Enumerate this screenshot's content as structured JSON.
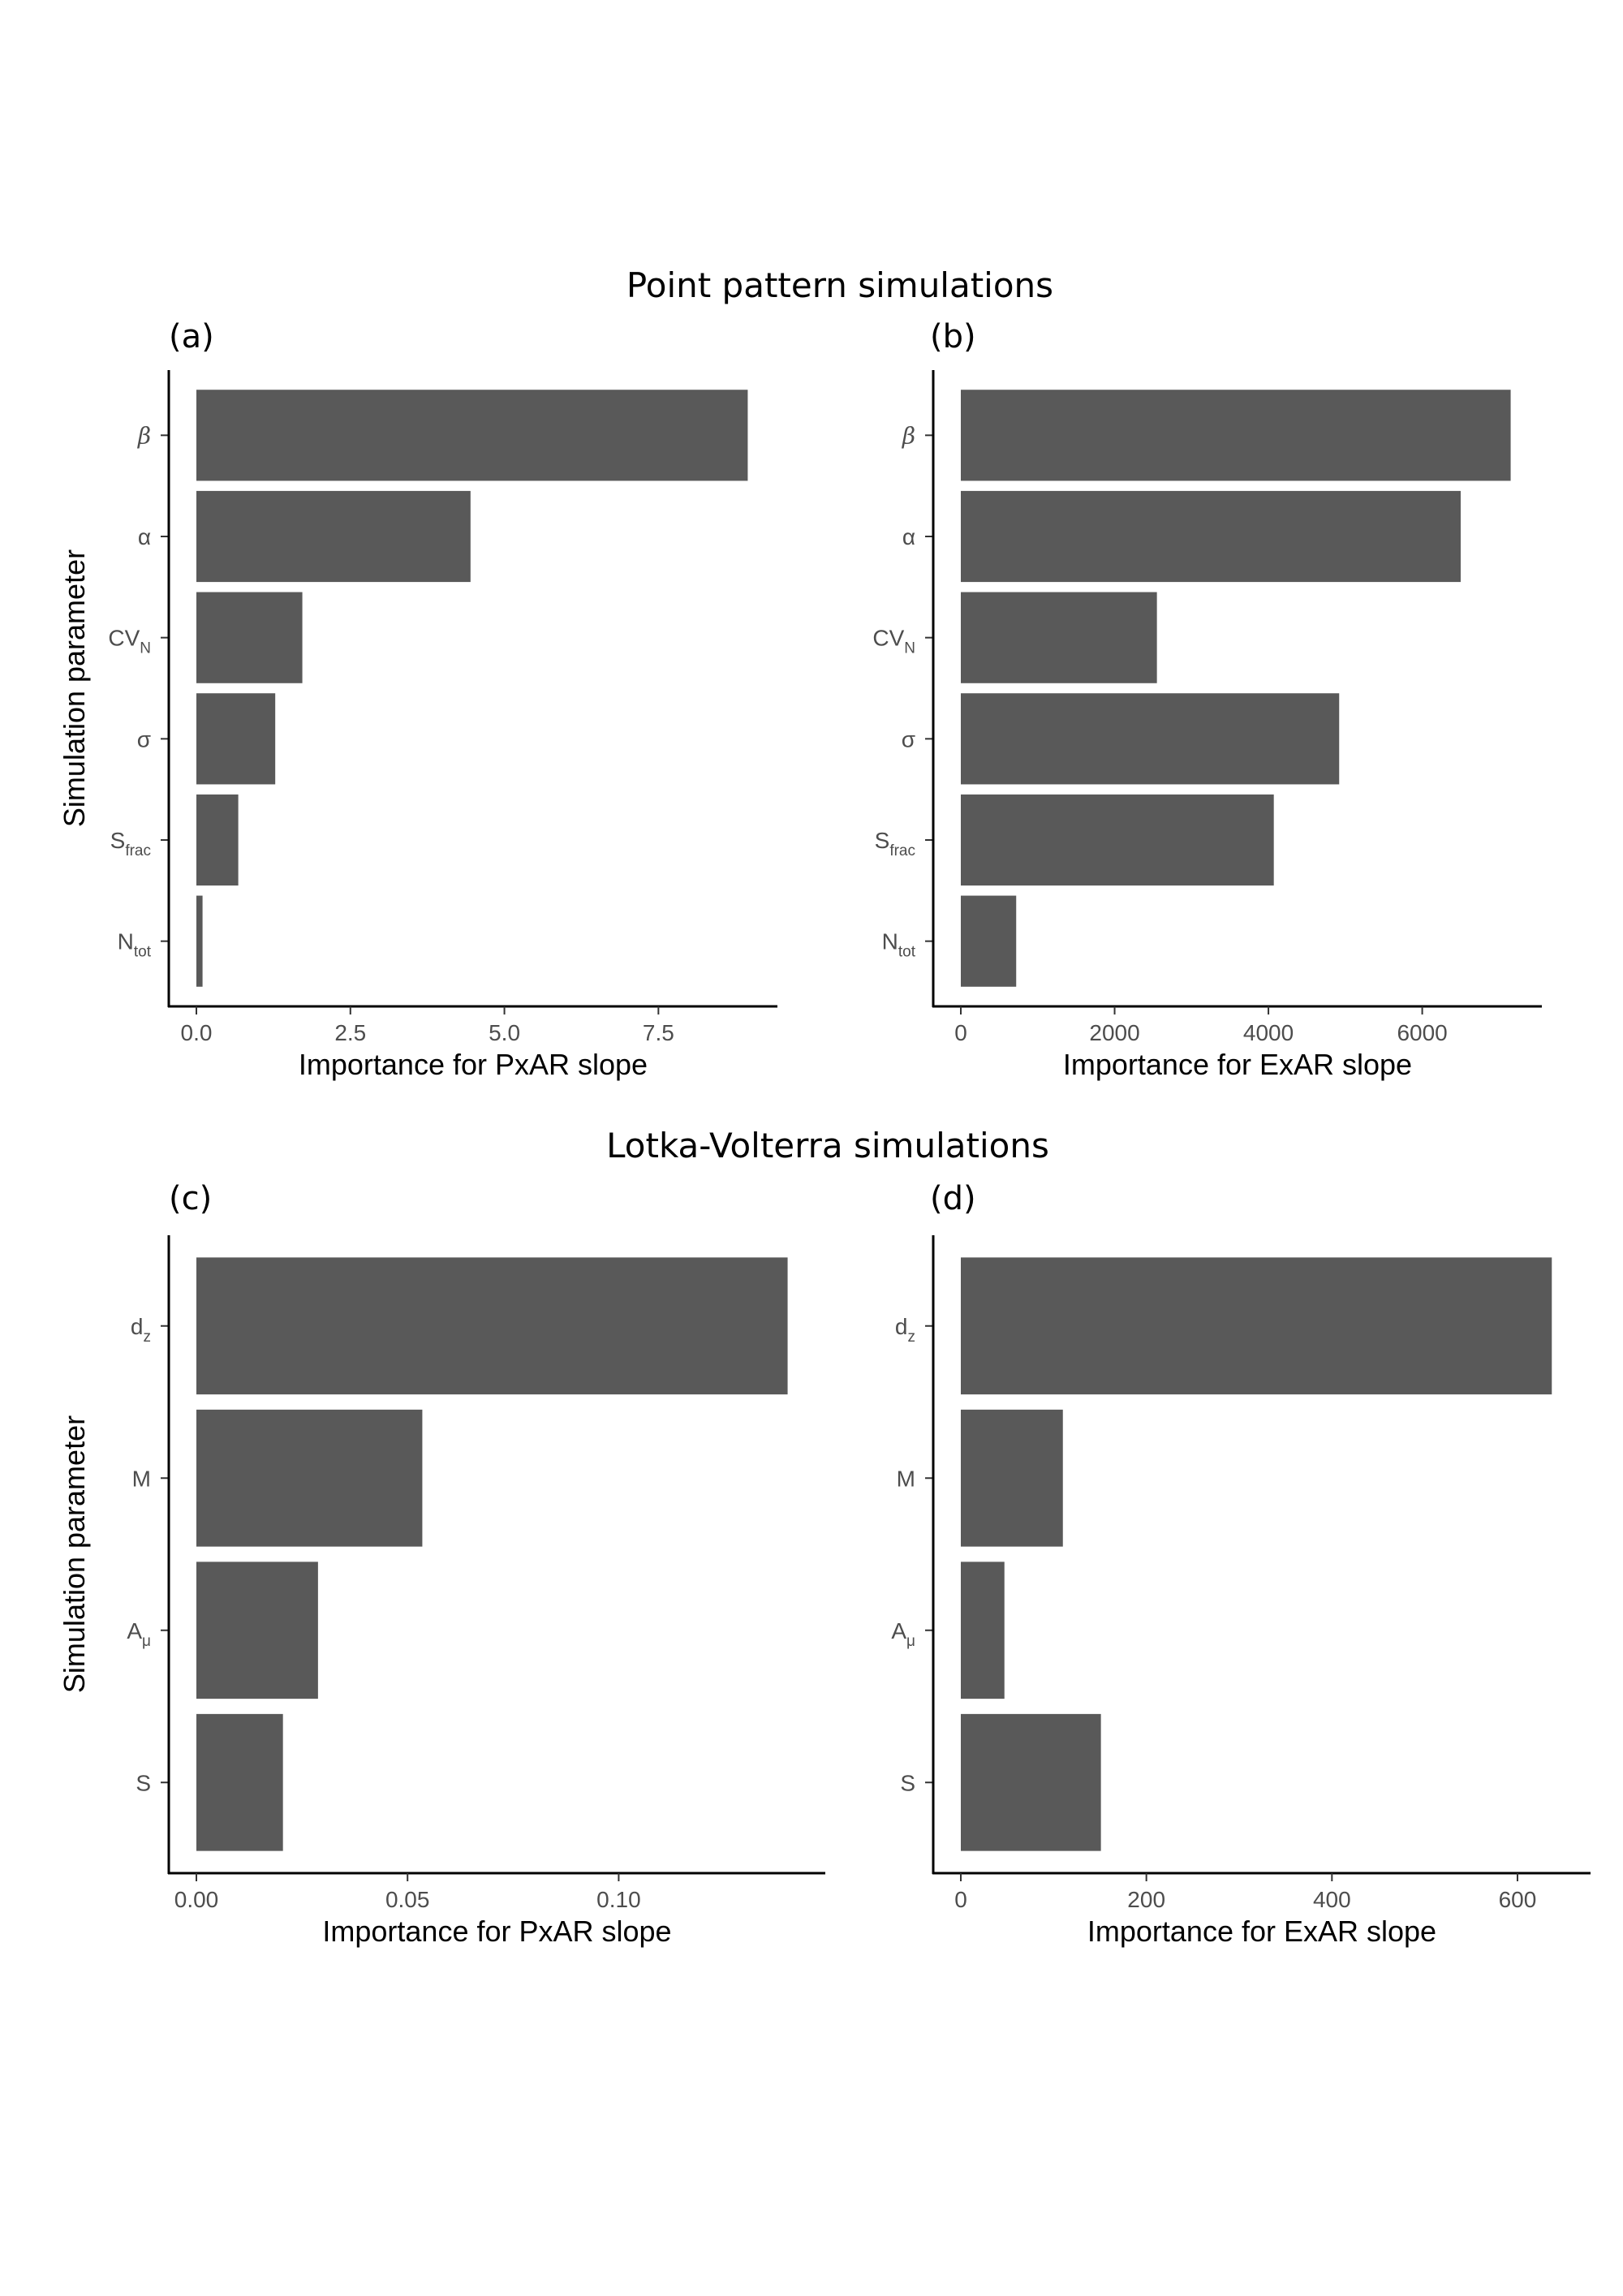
{
  "figure": {
    "section_titles": [
      "Point pattern simulations",
      "Lotka-Volterra simulations"
    ],
    "bar_color": "#595959"
  },
  "chart_data": [
    {
      "type": "bar",
      "orientation": "horizontal",
      "panel": "(a)",
      "section": "Point pattern simulations",
      "xlabel": "Importance for PxAR slope",
      "ylabel": "Simulation parameter",
      "xlim": [
        0,
        9.3
      ],
      "xticks": [
        0,
        2.5,
        5,
        7.5
      ],
      "xtick_labels": [
        "0.0",
        "2.5",
        "5.0",
        "7.5"
      ],
      "categories": [
        {
          "id": "beta",
          "base": "β",
          "sub": "",
          "italic": true
        },
        {
          "id": "alpha",
          "base": "α",
          "sub": ""
        },
        {
          "id": "cvn",
          "base": "CV",
          "sub": "N"
        },
        {
          "id": "sigma",
          "base": "σ",
          "sub": ""
        },
        {
          "id": "sfrac",
          "base": "S",
          "sub": "frac"
        },
        {
          "id": "ntot",
          "base": "N",
          "sub": "tot"
        }
      ],
      "values": [
        8.95,
        4.45,
        1.72,
        1.28,
        0.68,
        0.1
      ],
      "grid": false
    },
    {
      "type": "bar",
      "orientation": "horizontal",
      "panel": "(b)",
      "section": "Point pattern simulations",
      "xlabel": "Importance for ExAR slope",
      "ylabel": "",
      "xlim": [
        0,
        7450
      ],
      "xticks": [
        0,
        2000,
        4000,
        6000
      ],
      "xtick_labels": [
        "0",
        "2000",
        "4000",
        "6000"
      ],
      "categories": [
        {
          "id": "beta",
          "base": "β",
          "sub": "",
          "italic": true
        },
        {
          "id": "alpha",
          "base": "α",
          "sub": ""
        },
        {
          "id": "cvn",
          "base": "CV",
          "sub": "N"
        },
        {
          "id": "sigma",
          "base": "σ",
          "sub": ""
        },
        {
          "id": "sfrac",
          "base": "S",
          "sub": "frac"
        },
        {
          "id": "ntot",
          "base": "N",
          "sub": "tot"
        }
      ],
      "values": [
        7150,
        6500,
        2550,
        4920,
        4070,
        720
      ],
      "grid": false
    },
    {
      "type": "bar",
      "orientation": "horizontal",
      "panel": "(c)",
      "section": "Lotka-Volterra simulations",
      "xlabel": "Importance for PxAR slope",
      "ylabel": "Simulation parameter",
      "xlim": [
        0,
        0.147
      ],
      "xticks": [
        0,
        0.05,
        0.1
      ],
      "xtick_labels": [
        "0.00",
        "0.05",
        "0.10"
      ],
      "categories": [
        {
          "id": "dz",
          "base": "d",
          "sub": "z"
        },
        {
          "id": "m",
          "base": "M",
          "sub": ""
        },
        {
          "id": "amu",
          "base": "A",
          "sub": "μ"
        },
        {
          "id": "s",
          "base": "S",
          "sub": ""
        }
      ],
      "values": [
        0.14,
        0.0535,
        0.0288,
        0.0205
      ],
      "grid": false
    },
    {
      "type": "bar",
      "orientation": "horizontal",
      "panel": "(d)",
      "section": "Lotka-Volterra simulations",
      "xlabel": "Importance for ExAR slope",
      "ylabel": "",
      "xlim": [
        0,
        670
      ],
      "xticks": [
        0,
        200,
        400,
        600
      ],
      "xtick_labels": [
        "0",
        "200",
        "400",
        "600"
      ],
      "categories": [
        {
          "id": "dz",
          "base": "d",
          "sub": "z"
        },
        {
          "id": "m",
          "base": "M",
          "sub": ""
        },
        {
          "id": "amu",
          "base": "A",
          "sub": "μ"
        },
        {
          "id": "s",
          "base": "S",
          "sub": ""
        }
      ],
      "values": [
        637,
        110,
        47,
        151
      ],
      "grid": false
    }
  ]
}
